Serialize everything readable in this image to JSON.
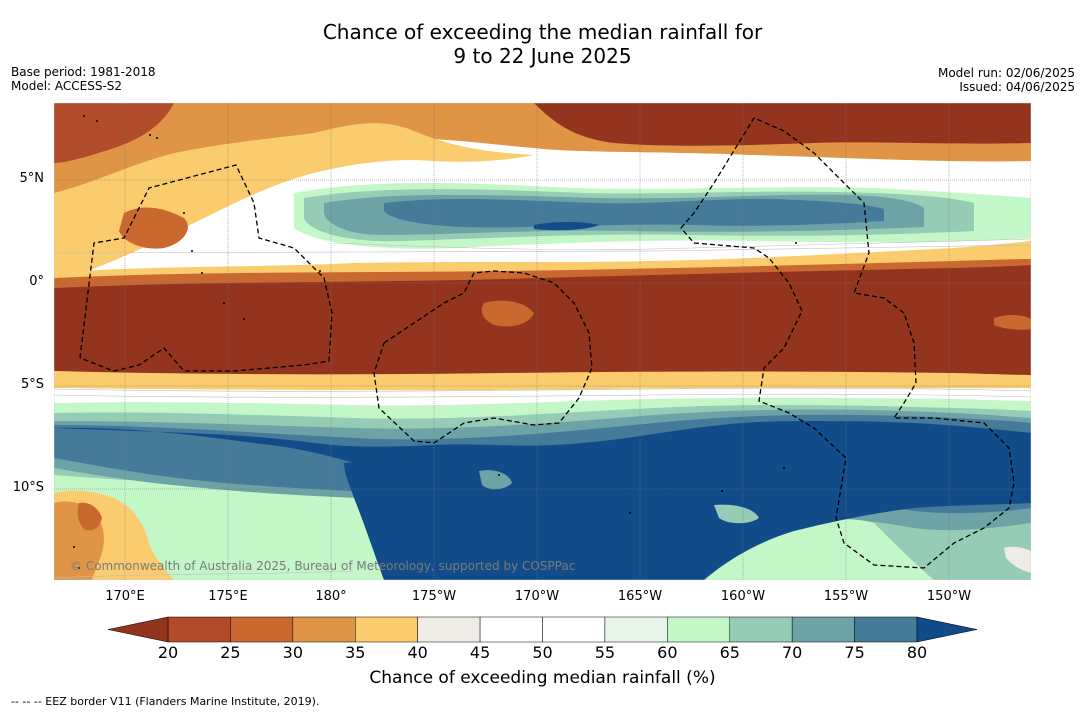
{
  "header": {
    "title_line1": "Chance of exceeding the median rainfall for",
    "title_line2": "9 to 22 June 2025"
  },
  "meta_left": {
    "base_period": "Base period: 1981-2018",
    "model": "Model: ACCESS-S2"
  },
  "meta_right": {
    "model_run": "Model run: 02/06/2025",
    "issued": "Issued: 04/06/2025"
  },
  "map": {
    "copyright": "© Commonwealth of Australia 2025, Bureau of Meteorology, supported by COSPPac",
    "lat_labels": [
      "5°N",
      "0°",
      "5°S",
      "10°S"
    ],
    "lon_labels": [
      "170°E",
      "175°E",
      "180°",
      "175°W",
      "170°W",
      "165°W",
      "160°W",
      "155°W",
      "150°W"
    ]
  },
  "colorbar": {
    "title": "Chance of exceeding median rainfall (%)",
    "ticks": [
      "20",
      "25",
      "30",
      "35",
      "40",
      "45",
      "50",
      "55",
      "60",
      "65",
      "70",
      "75",
      "80"
    ],
    "colors": [
      "#93341f",
      "#b04c2a",
      "#c9682f",
      "#df9446",
      "#fbcc6e",
      "#efebe6",
      "#ffffff",
      "#ffffff",
      "#e6f5e7",
      "#c3f7c7",
      "#96cbb5",
      "#6da2a6",
      "#457a99",
      "#124b89"
    ],
    "over_color": "#124b89",
    "under_color": "#93341f"
  },
  "footer": {
    "note": "--  --  -- EEZ border V11 (Flanders Marine Institute, 2019)."
  }
}
